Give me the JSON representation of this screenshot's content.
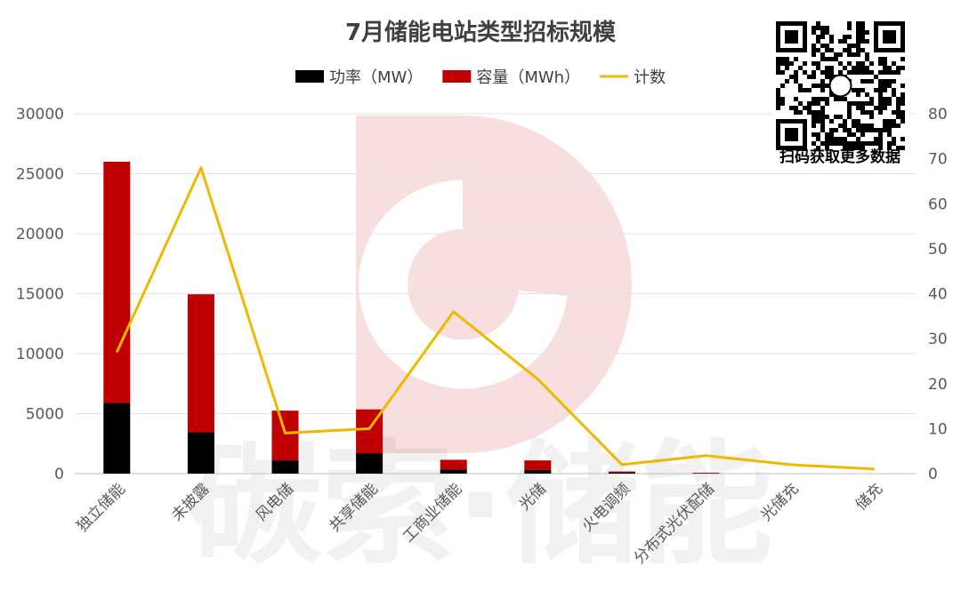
{
  "chart_data": {
    "type": "bar",
    "title": "7月储能电站类型招标规模",
    "categories": [
      "独立储能",
      "未披露",
      "风电储",
      "共享储能",
      "工商业储能",
      "光储",
      "火电调频",
      "分布式光伏配储",
      "光储充",
      "储充"
    ],
    "series": [
      {
        "name": "功率（MW）",
        "kind": "stacked-bar",
        "axis": "left",
        "color": "#000000",
        "values": [
          5900,
          3450,
          1100,
          1700,
          350,
          300,
          100,
          30,
          0,
          0
        ]
      },
      {
        "name": "容量（MWh）",
        "kind": "stacked-bar",
        "axis": "left",
        "color": "#C00000",
        "values": [
          20100,
          11500,
          4150,
          3650,
          800,
          800,
          80,
          40,
          0,
          0
        ]
      },
      {
        "name": "计数",
        "kind": "line",
        "axis": "right",
        "color": "#F0B800",
        "values": [
          27,
          68,
          9,
          10,
          36,
          21,
          2,
          4,
          2,
          1
        ]
      }
    ],
    "y_left": {
      "min": 0,
      "max": 30000,
      "ticks": [
        0,
        5000,
        10000,
        15000,
        20000,
        25000,
        30000
      ]
    },
    "y_right": {
      "min": 0,
      "max": 80,
      "ticks": [
        0,
        10,
        20,
        30,
        40,
        50,
        60,
        70,
        80
      ]
    },
    "grid": true,
    "legend_position": "top"
  },
  "watermark": {
    "text": "碳索·储能"
  },
  "qr": {
    "caption": "扫码获取更多数据"
  }
}
